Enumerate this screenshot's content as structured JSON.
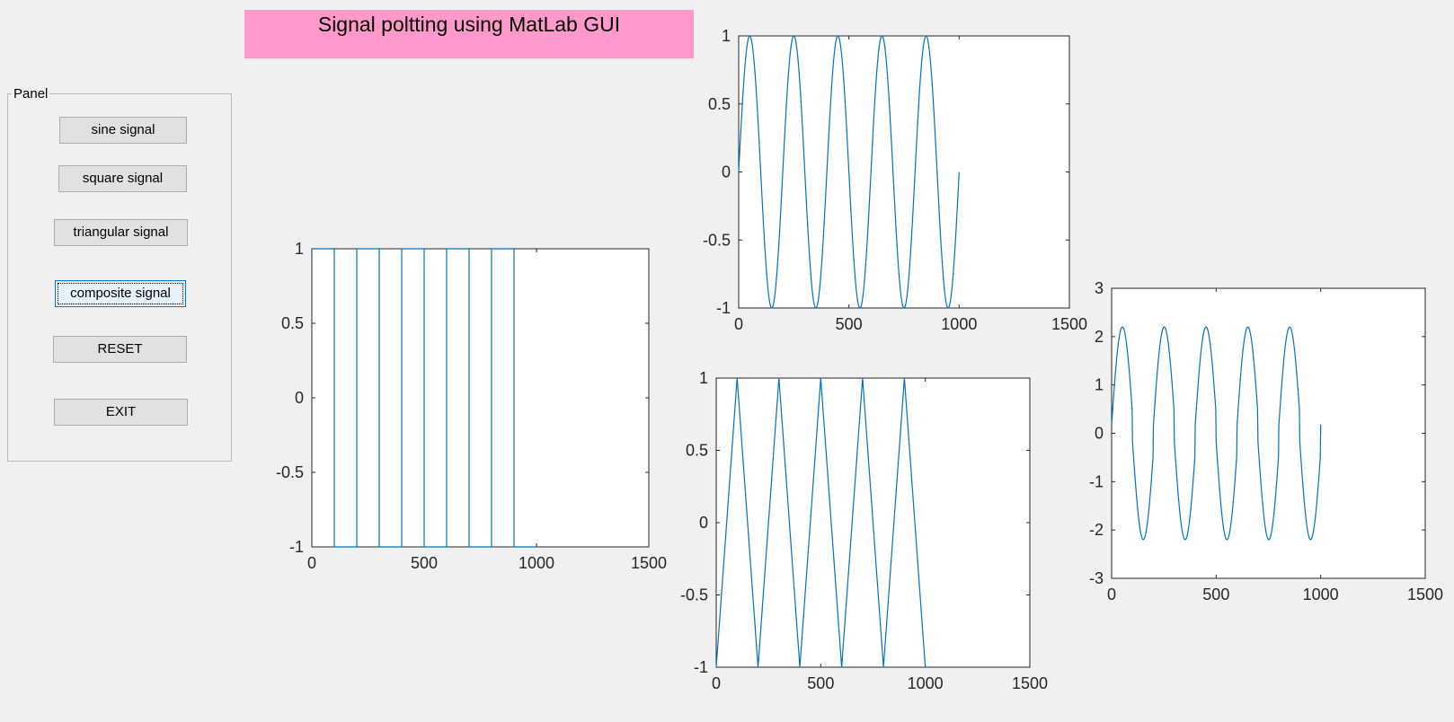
{
  "window": {
    "title": "Signal poltting using MatLab GUI"
  },
  "panel": {
    "label": "Panel",
    "buttons": {
      "sine": "sine signal",
      "square": "square signal",
      "triangular": "triangular signal",
      "composite": "composite signal",
      "reset": "RESET",
      "exit": "EXIT"
    }
  },
  "colors": {
    "title_background": "#ff99cc",
    "line": "#0072bd",
    "axes_background": "#ffffff",
    "figure_background": "#f0f0f0"
  },
  "chart_data": [
    {
      "id": "square",
      "type": "line",
      "signal": "square",
      "title": "",
      "xlabel": "",
      "ylabel": "",
      "xlim": [
        0,
        1500
      ],
      "ylim": [
        -1,
        1
      ],
      "xticks": [
        0,
        500,
        1000,
        1500
      ],
      "yticks": [
        -1,
        -0.5,
        0,
        0.5,
        1
      ],
      "x_range": [
        0,
        1000
      ],
      "period": 200,
      "amplitude": 1,
      "grid": false
    },
    {
      "id": "sine",
      "type": "line",
      "signal": "sine",
      "title": "",
      "xlabel": "",
      "ylabel": "",
      "xlim": [
        0,
        1500
      ],
      "ylim": [
        -1,
        1
      ],
      "xticks": [
        0,
        500,
        1000,
        1500
      ],
      "yticks": [
        -1,
        -0.5,
        0,
        0.5,
        1
      ],
      "x_range": [
        0,
        1000
      ],
      "period": 200,
      "amplitude": 1,
      "grid": false
    },
    {
      "id": "triangular",
      "type": "line",
      "signal": "triangular",
      "title": "",
      "xlabel": "",
      "ylabel": "",
      "xlim": [
        0,
        1500
      ],
      "ylim": [
        -1,
        1
      ],
      "xticks": [
        0,
        500,
        1000,
        1500
      ],
      "yticks": [
        -1,
        -0.5,
        0,
        0.5,
        1
      ],
      "x_range": [
        0,
        1000
      ],
      "period": 200,
      "amplitude": 1,
      "grid": false
    },
    {
      "id": "composite",
      "type": "line",
      "signal": "composite",
      "title": "",
      "xlabel": "",
      "ylabel": "",
      "xlim": [
        0,
        1500
      ],
      "ylim": [
        -3,
        3
      ],
      "xticks": [
        0,
        500,
        1000,
        1500
      ],
      "yticks": [
        -3,
        -2,
        -1,
        0,
        1,
        2,
        3
      ],
      "x_range": [
        0,
        1000
      ],
      "period": 200,
      "amplitude": 2.2,
      "grid": false
    }
  ]
}
